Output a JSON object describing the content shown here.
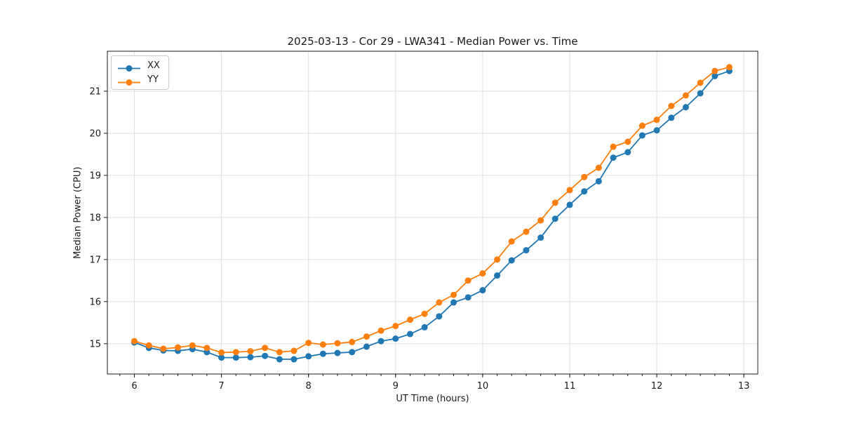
{
  "chart_data": {
    "type": "line",
    "title": "2025-03-13 - Cor 29 - LWA341 - Median Power vs. Time",
    "xlabel": "UT Time (hours)",
    "ylabel": "Median Power (CPU)",
    "xlim": [
      5.69,
      13.16
    ],
    "ylim": [
      14.28,
      21.95
    ],
    "xticks": [
      6,
      7,
      8,
      9,
      10,
      11,
      12,
      13
    ],
    "yticks": [
      15,
      16,
      17,
      18,
      19,
      20,
      21
    ],
    "x_minor_step": 0.1666667,
    "grid": true,
    "grid_color": "#e0e0e0",
    "legend_position": "upper-left",
    "x": [
      6.0,
      6.167,
      6.333,
      6.5,
      6.667,
      6.833,
      7.0,
      7.167,
      7.333,
      7.5,
      7.667,
      7.833,
      8.0,
      8.167,
      8.333,
      8.5,
      8.667,
      8.833,
      9.0,
      9.167,
      9.333,
      9.5,
      9.667,
      9.833,
      10.0,
      10.167,
      10.333,
      10.5,
      10.667,
      10.833,
      11.0,
      11.167,
      11.333,
      11.5,
      11.667,
      11.833,
      12.0,
      12.167,
      12.333,
      12.5,
      12.667,
      12.833
    ],
    "series": [
      {
        "name": "XX",
        "color": "#1f77b4",
        "marker": "circle",
        "values": [
          15.03,
          14.9,
          14.84,
          14.83,
          14.87,
          14.8,
          14.67,
          14.67,
          14.68,
          14.71,
          14.63,
          14.63,
          14.7,
          14.76,
          14.78,
          14.8,
          14.93,
          15.06,
          15.12,
          15.23,
          15.39,
          15.65,
          15.98,
          16.1,
          16.27,
          16.62,
          16.98,
          17.22,
          17.52,
          17.97,
          18.3,
          18.62,
          18.86,
          19.42,
          19.55,
          19.95,
          20.07,
          20.37,
          20.62,
          20.95,
          21.36,
          21.48
        ]
      },
      {
        "name": "YY",
        "color": "#ff7f0e",
        "marker": "circle",
        "values": [
          15.06,
          14.96,
          14.88,
          14.91,
          14.96,
          14.9,
          14.79,
          14.8,
          14.82,
          14.9,
          14.8,
          14.83,
          15.02,
          14.98,
          15.01,
          15.04,
          15.17,
          15.31,
          15.42,
          15.57,
          15.71,
          15.98,
          16.16,
          16.5,
          16.67,
          17.0,
          17.43,
          17.66,
          17.93,
          18.35,
          18.65,
          18.96,
          19.18,
          19.68,
          19.8,
          20.18,
          20.32,
          20.65,
          20.9,
          21.2,
          21.48,
          21.57
        ]
      }
    ]
  }
}
